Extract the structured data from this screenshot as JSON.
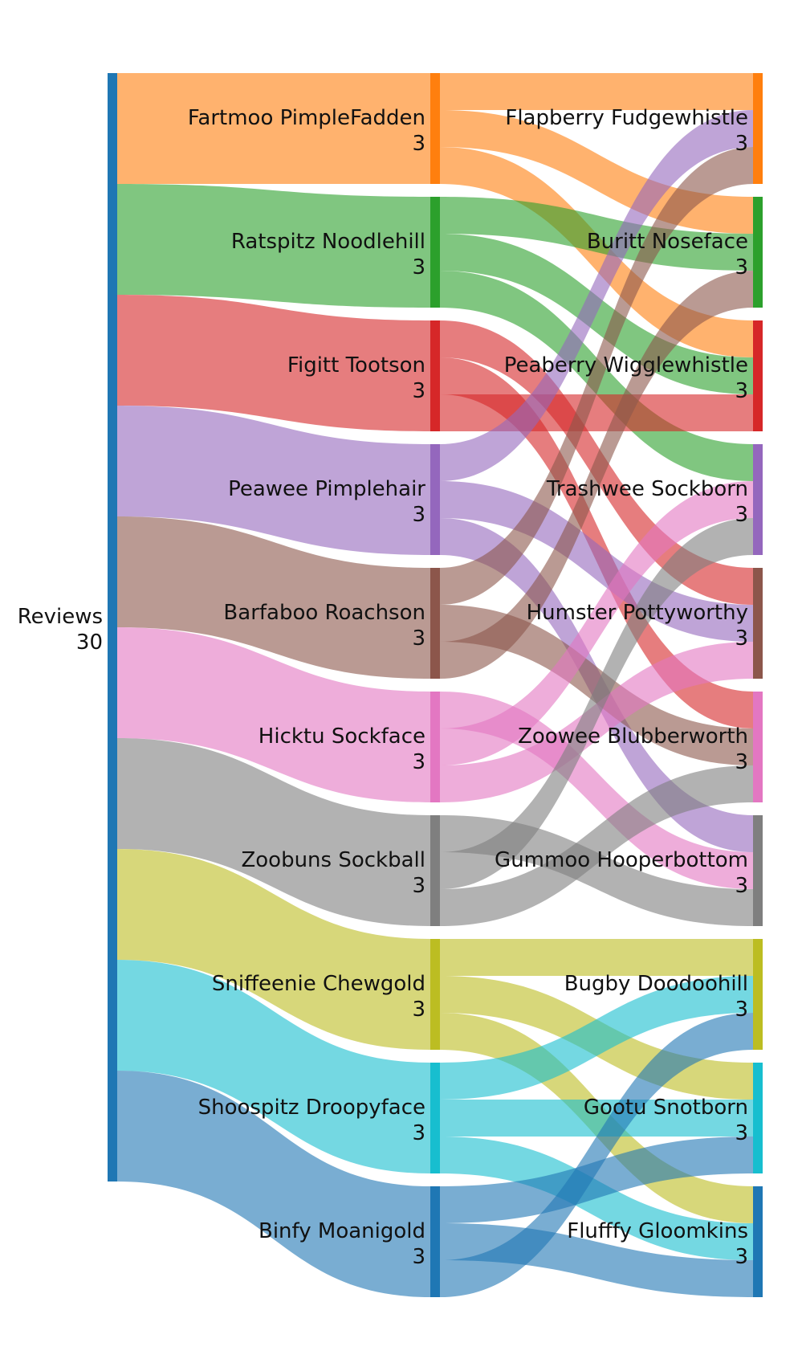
{
  "source": {
    "label": "Reviews",
    "value": "30",
    "color": "#1f77b4"
  },
  "reviewers": [
    {
      "name": "Fartmoo PimpleFadden",
      "value": "3",
      "color": "#ff7f0e"
    },
    {
      "name": "Ratspitz Noodlehill",
      "value": "3",
      "color": "#2ca02c"
    },
    {
      "name": "Figitt Tootson",
      "value": "3",
      "color": "#d62728"
    },
    {
      "name": "Peawee Pimplehair",
      "value": "3",
      "color": "#9467bd"
    },
    {
      "name": "Barfaboo Roachson",
      "value": "3",
      "color": "#8c564b"
    },
    {
      "name": "Hicktu Sockface",
      "value": "3",
      "color": "#e377c2"
    },
    {
      "name": "Zoobuns Sockball",
      "value": "3",
      "color": "#7f7f7f"
    },
    {
      "name": "Sniffeenie Chewgold",
      "value": "3",
      "color": "#bcbd22"
    },
    {
      "name": "Shoospitz Droopyface",
      "value": "3",
      "color": "#17becf"
    },
    {
      "name": "Binfy Moanigold",
      "value": "3",
      "color": "#1f77b4"
    }
  ],
  "reviewees": [
    {
      "name": "Flapberry Fudgewhistle",
      "value": "3",
      "color": "#ff7f0e"
    },
    {
      "name": "Buritt Noseface",
      "value": "3",
      "color": "#2ca02c"
    },
    {
      "name": "Peaberry Wigglewhistle",
      "value": "3",
      "color": "#d62728"
    },
    {
      "name": "Trashwee Sockborn",
      "value": "3",
      "color": "#9467bd"
    },
    {
      "name": "Humster Pottyworthy",
      "value": "3",
      "color": "#8c564b"
    },
    {
      "name": "Zoowee Blubberworth",
      "value": "3",
      "color": "#e377c2"
    },
    {
      "name": "Gummoo Hooperbottom",
      "value": "3",
      "color": "#7f7f7f"
    },
    {
      "name": "Bugby Doodoohill",
      "value": "3",
      "color": "#bcbd22"
    },
    {
      "name": "Gootu Snotborn",
      "value": "3",
      "color": "#17becf"
    },
    {
      "name": "Flufffy Gloomkins",
      "value": "3",
      "color": "#1f77b4"
    }
  ],
  "links": [
    {
      "from": 0,
      "to": 0,
      "value": 1
    },
    {
      "from": 0,
      "to": 1,
      "value": 1
    },
    {
      "from": 0,
      "to": 2,
      "value": 1
    },
    {
      "from": 1,
      "to": 1,
      "value": 1
    },
    {
      "from": 1,
      "to": 2,
      "value": 1
    },
    {
      "from": 1,
      "to": 3,
      "value": 1
    },
    {
      "from": 2,
      "to": 4,
      "value": 1
    },
    {
      "from": 2,
      "to": 5,
      "value": 1
    },
    {
      "from": 2,
      "to": 2,
      "value": 1
    },
    {
      "from": 3,
      "to": 0,
      "value": 1
    },
    {
      "from": 3,
      "to": 4,
      "value": 1
    },
    {
      "from": 3,
      "to": 6,
      "value": 1
    },
    {
      "from": 4,
      "to": 0,
      "value": 1
    },
    {
      "from": 4,
      "to": 5,
      "value": 1
    },
    {
      "from": 4,
      "to": 1,
      "value": 1
    },
    {
      "from": 5,
      "to": 6,
      "value": 1
    },
    {
      "from": 5,
      "to": 3,
      "value": 1
    },
    {
      "from": 5,
      "to": 4,
      "value": 1
    },
    {
      "from": 6,
      "to": 6,
      "value": 1
    },
    {
      "from": 6,
      "to": 3,
      "value": 1
    },
    {
      "from": 6,
      "to": 5,
      "value": 1
    },
    {
      "from": 7,
      "to": 7,
      "value": 1
    },
    {
      "from": 7,
      "to": 8,
      "value": 1
    },
    {
      "from": 7,
      "to": 9,
      "value": 1
    },
    {
      "from": 8,
      "to": 7,
      "value": 1
    },
    {
      "from": 8,
      "to": 8,
      "value": 1
    },
    {
      "from": 8,
      "to": 9,
      "value": 1
    },
    {
      "from": 9,
      "to": 8,
      "value": 1
    },
    {
      "from": 9,
      "to": 9,
      "value": 1
    },
    {
      "from": 9,
      "to": 7,
      "value": 1
    }
  ]
}
